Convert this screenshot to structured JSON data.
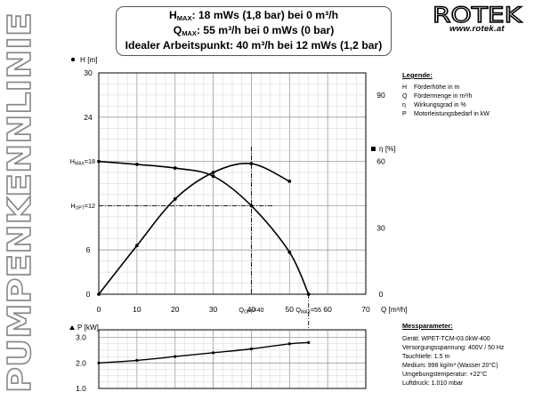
{
  "page_title": "PUMPENKENNLINIE",
  "header": {
    "line1": {
      "pre": "H",
      "sub": "MAX",
      "post": ": 18 mWs (1,8 bar) bei 0 m³/h"
    },
    "line2": {
      "pre": "Q",
      "sub": "MAX",
      "post": ": 55 m³/h bei 0 mWs (0 bar)"
    },
    "line3": "Idealer Arbeitspunkt: 40 m³/h bei 12 mWs (1,2 bar)"
  },
  "brand": {
    "logo": "ROTEK",
    "url": "www.rotek.at"
  },
  "legend": {
    "title": "Legende:",
    "items": [
      {
        "symbol": "H",
        "text": "Förderhöhe in m"
      },
      {
        "symbol": "Q",
        "text": "Fördermenge in m³/h"
      },
      {
        "symbol": "η",
        "text": "Wirkungsgrad in %"
      },
      {
        "symbol": "P",
        "text": "Motorleistungsbedarf in kW"
      }
    ]
  },
  "messparameter": {
    "title": "Messparameter:",
    "items": [
      "Gerät: WPET-TCM-03.0kW-400",
      "Versorgungsspannung: 400V / 50 Hz",
      "Tauchtiefe: 1.5 m",
      "Medium: 998 kg/m³ (Wasser 20°C)",
      "Umgebungstemperatur: +22°C",
      "Luftdruck: 1.010 mbar"
    ]
  },
  "chart_data": [
    {
      "type": "line",
      "x_label": "Q [m³/h]",
      "y_label": "H [m]",
      "y2_label": "η [%]",
      "x_ticks": [
        "0",
        "10",
        "20",
        "30",
        "40",
        "50",
        "60",
        "70"
      ],
      "x_special_ticks": [
        {
          "label": "Q_OPT=40",
          "x": 40
        },
        {
          "label": "Q_MAX=55",
          "x": 55
        }
      ],
      "y_ticks": [
        "0",
        "6",
        "12",
        "18",
        "24",
        "30"
      ],
      "y_special_ticks": [
        {
          "label": "H_MAX=18",
          "y": 18
        },
        {
          "label": "H_OPT=12",
          "y": 12
        }
      ],
      "y2_ticks": [
        "0",
        "30",
        "60",
        "90"
      ],
      "xlim": [
        0,
        70
      ],
      "ylim": [
        0,
        30
      ],
      "y2lim": [
        0,
        100
      ],
      "grid": true,
      "operating_point": {
        "x": 40,
        "y": 12
      },
      "series": [
        {
          "name": "H",
          "axis": "left",
          "x": [
            0,
            10,
            20,
            30,
            40,
            50,
            55
          ],
          "y": [
            18,
            17.6,
            17.1,
            16,
            12,
            5.7,
            0
          ]
        },
        {
          "name": "η",
          "axis": "right",
          "x": [
            0,
            10,
            20,
            30,
            40,
            50
          ],
          "y": [
            0,
            22,
            43,
            55,
            59,
            51
          ]
        }
      ]
    },
    {
      "type": "line",
      "y_label": "P [kW]",
      "y_ticks": [
        "1.0",
        "2.0",
        "3.0"
      ],
      "xlim": [
        0,
        70
      ],
      "ylim": [
        1,
        3.3
      ],
      "grid": true,
      "series": [
        {
          "name": "P",
          "x": [
            0,
            10,
            20,
            30,
            40,
            50,
            55
          ],
          "y": [
            2.0,
            2.1,
            2.25,
            2.4,
            2.55,
            2.75,
            2.8
          ]
        }
      ]
    }
  ]
}
